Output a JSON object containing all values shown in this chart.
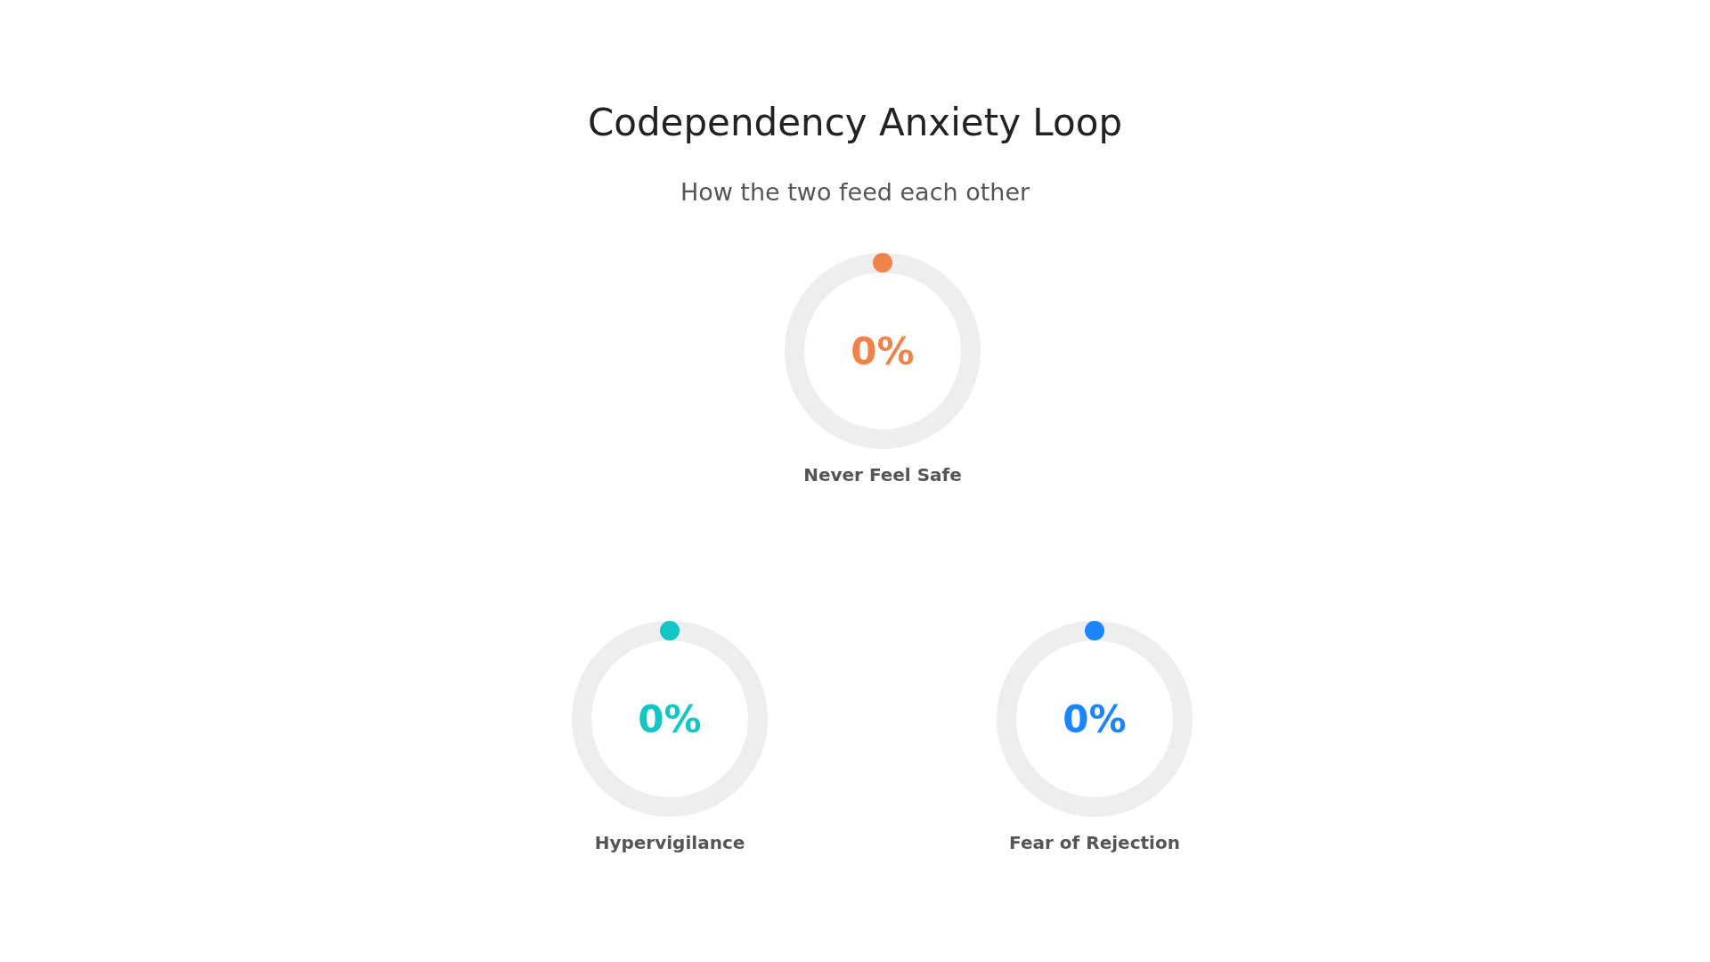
{
  "chart_data": [
    {
      "type": "donut",
      "title": "Codependency Anxiety Loop",
      "subtitle": "How the two feed each other",
      "categories": [
        "Never Feel Safe",
        null
      ],
      "values": [
        0,
        100
      ],
      "colors": [
        "#f0834a",
        "#eeeeee"
      ],
      "value_labels": [
        "0%",
        null
      ]
    },
    {
      "type": "donut",
      "categories": [
        "Hypervigilance",
        null
      ],
      "values": [
        0,
        100
      ],
      "colors": [
        "#13c6c6",
        "#eeeeee"
      ],
      "value_labels": [
        "0%",
        null
      ]
    },
    {
      "type": "donut",
      "categories": [
        "Fear of Rejection",
        null
      ],
      "values": [
        0,
        100
      ],
      "colors": [
        "#1a85ff",
        "#eeeeee"
      ],
      "value_labels": [
        "0%",
        null
      ]
    }
  ]
}
